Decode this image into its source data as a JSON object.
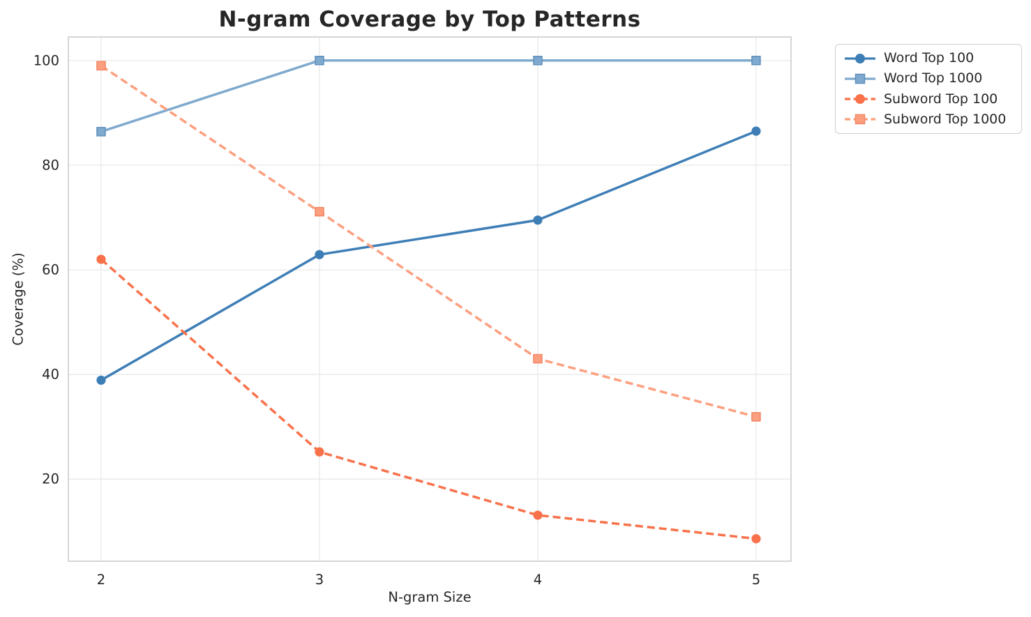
{
  "chart": {
    "title": "N-gram Coverage by Top Patterns",
    "xlabel": "N-gram Size",
    "ylabel": "Coverage (%)"
  },
  "chart_data": {
    "type": "line",
    "title": "N-gram Coverage by Top Patterns",
    "xlabel": "N-gram Size",
    "ylabel": "Coverage (%)",
    "x": [
      2,
      3,
      4,
      5
    ],
    "xticks": [
      "2",
      "3",
      "4",
      "5"
    ],
    "yticks": [
      20,
      40,
      60,
      80,
      100
    ],
    "xlim": [
      1.85,
      5.16
    ],
    "ylim": [
      4.3,
      104.5
    ],
    "grid": true,
    "grid_color": "#e9e9e9",
    "spine_color": "#c9c9c9",
    "text_color": "#262626",
    "legend_position": "outside-top-right",
    "series": [
      {
        "name": "Word Top 100",
        "values": [
          38.9,
          62.9,
          69.5,
          86.5
        ],
        "color": "#3E7EB6",
        "edge_color": "#33699a",
        "line_style": "solid",
        "marker": "circle"
      },
      {
        "name": "Word Top 1000",
        "values": [
          86.4,
          100.0,
          100.0,
          100.0
        ],
        "color": "#7FA9CE",
        "edge_color": "#5f8fbc",
        "line_style": "solid",
        "marker": "square"
      },
      {
        "name": "Subword Top 100",
        "values": [
          62.0,
          25.2,
          13.1,
          8.6
        ],
        "color": "#F8714A",
        "edge_color": "#e05a33",
        "line_style": "dashed",
        "marker": "circle"
      },
      {
        "name": "Subword Top 1000",
        "values": [
          99.0,
          71.1,
          43.0,
          31.9
        ],
        "color": "#FC9F7F",
        "edge_color": "#f28562",
        "line_style": "dashed",
        "marker": "square"
      }
    ]
  }
}
